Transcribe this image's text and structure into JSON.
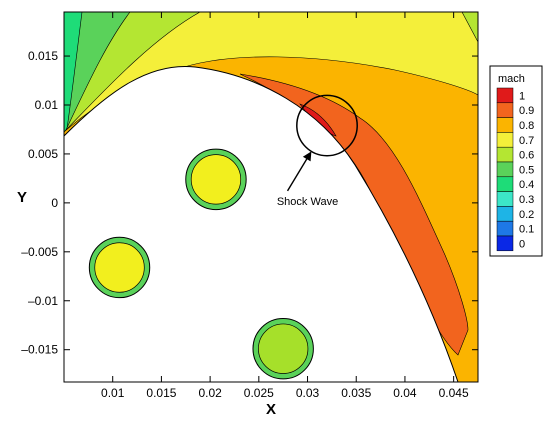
{
  "chart_data": {
    "type": "contour",
    "title": "",
    "xlabel": "X",
    "ylabel": "Y",
    "xlim": [
      0.005,
      0.0475
    ],
    "ylim": [
      -0.0183,
      0.0195
    ],
    "x_ticks": [
      0.01,
      0.015,
      0.02,
      0.025,
      0.03,
      0.035,
      0.04,
      0.045
    ],
    "x_tick_labels": [
      "0.01",
      "0.015",
      "0.02",
      "0.025",
      "0.03",
      "0.035",
      "0.04",
      "0.045"
    ],
    "y_ticks": [
      0.015,
      0.01,
      0.005,
      0,
      -0.005,
      -0.01,
      -0.015
    ],
    "y_tick_labels": [
      "0.015",
      "0.01",
      "0.005",
      "0",
      "–0.005",
      "–0.01",
      "–0.015"
    ],
    "legend": {
      "title": "mach",
      "placement": "right",
      "levels": [
        {
          "label": "1",
          "color": "#e01a1a"
        },
        {
          "label": "0.9",
          "color": "#f2641e"
        },
        {
          "label": "0.8",
          "color": "#fbb400"
        },
        {
          "label": "0.7",
          "color": "#f4ef3a"
        },
        {
          "label": "0.6",
          "color": "#b4e632"
        },
        {
          "label": "0.5",
          "color": "#5ad25a"
        },
        {
          "label": "0.4",
          "color": "#1edc78"
        },
        {
          "label": "0.3",
          "color": "#3ce6c8"
        },
        {
          "label": "0.2",
          "color": "#1eb4e6"
        },
        {
          "label": "0.1",
          "color": "#1e78e6"
        },
        {
          "label": "0",
          "color": "#0a28e6"
        }
      ]
    },
    "particles": [
      {
        "cx": 0.0206,
        "cy": 0.0024,
        "r": 0.0031,
        "color": "#f2ef1e"
      },
      {
        "cx": 0.0107,
        "cy": -0.0066,
        "r": 0.0031,
        "color": "#f2ef1e"
      },
      {
        "cx": 0.0275,
        "cy": -0.0149,
        "r": 0.0031,
        "color": "#a6e02a"
      }
    ],
    "annotation": {
      "label": "Shock Wave",
      "circle_center": [
        0.032,
        0.0079
      ],
      "circle_radius": 0.0031,
      "text_at": [
        0.03,
        -0.0002
      ]
    }
  }
}
